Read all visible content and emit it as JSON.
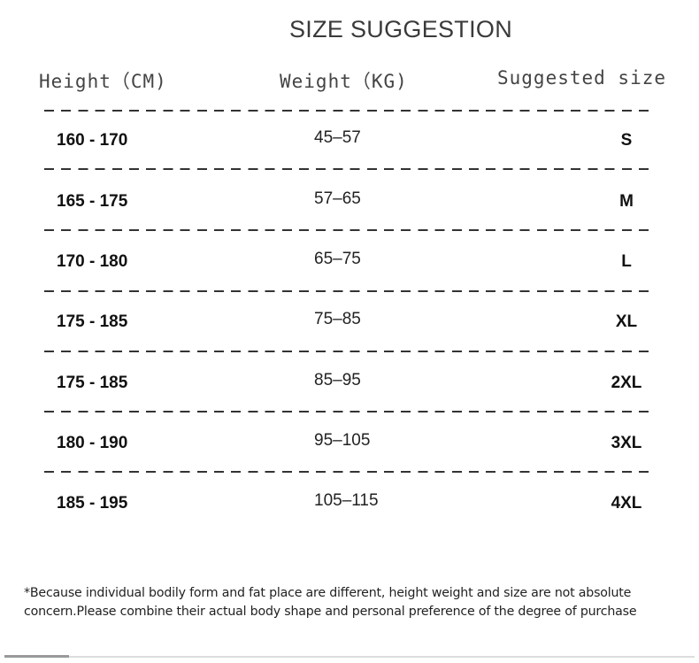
{
  "title": "SIZE SUGGESTION",
  "headers": {
    "height": "Height（CM)",
    "weight": "Weight（KG)",
    "size": "Suggested size"
  },
  "rows": [
    {
      "height": "160 - 170",
      "weight": "45–57",
      "size": "S"
    },
    {
      "height": "165 - 175",
      "weight": "57–65",
      "size": "M"
    },
    {
      "height": "170 - 180",
      "weight": "65–75",
      "size": "L"
    },
    {
      "height": "175 - 185",
      "weight": "75–85",
      "size": "XL"
    },
    {
      "height": "175 - 185",
      "weight": "85–95",
      "size": "2XL"
    },
    {
      "height": "180 - 190",
      "weight": "95–105",
      "size": "3XL"
    },
    {
      "height": "185 - 195",
      "weight": "105–115",
      "size": "4XL"
    }
  ],
  "note": "*Because individual bodily form and fat place are different, height weight and size are not absolute concern.Please combine their actual body shape and personal preference of the degree of purchase"
}
